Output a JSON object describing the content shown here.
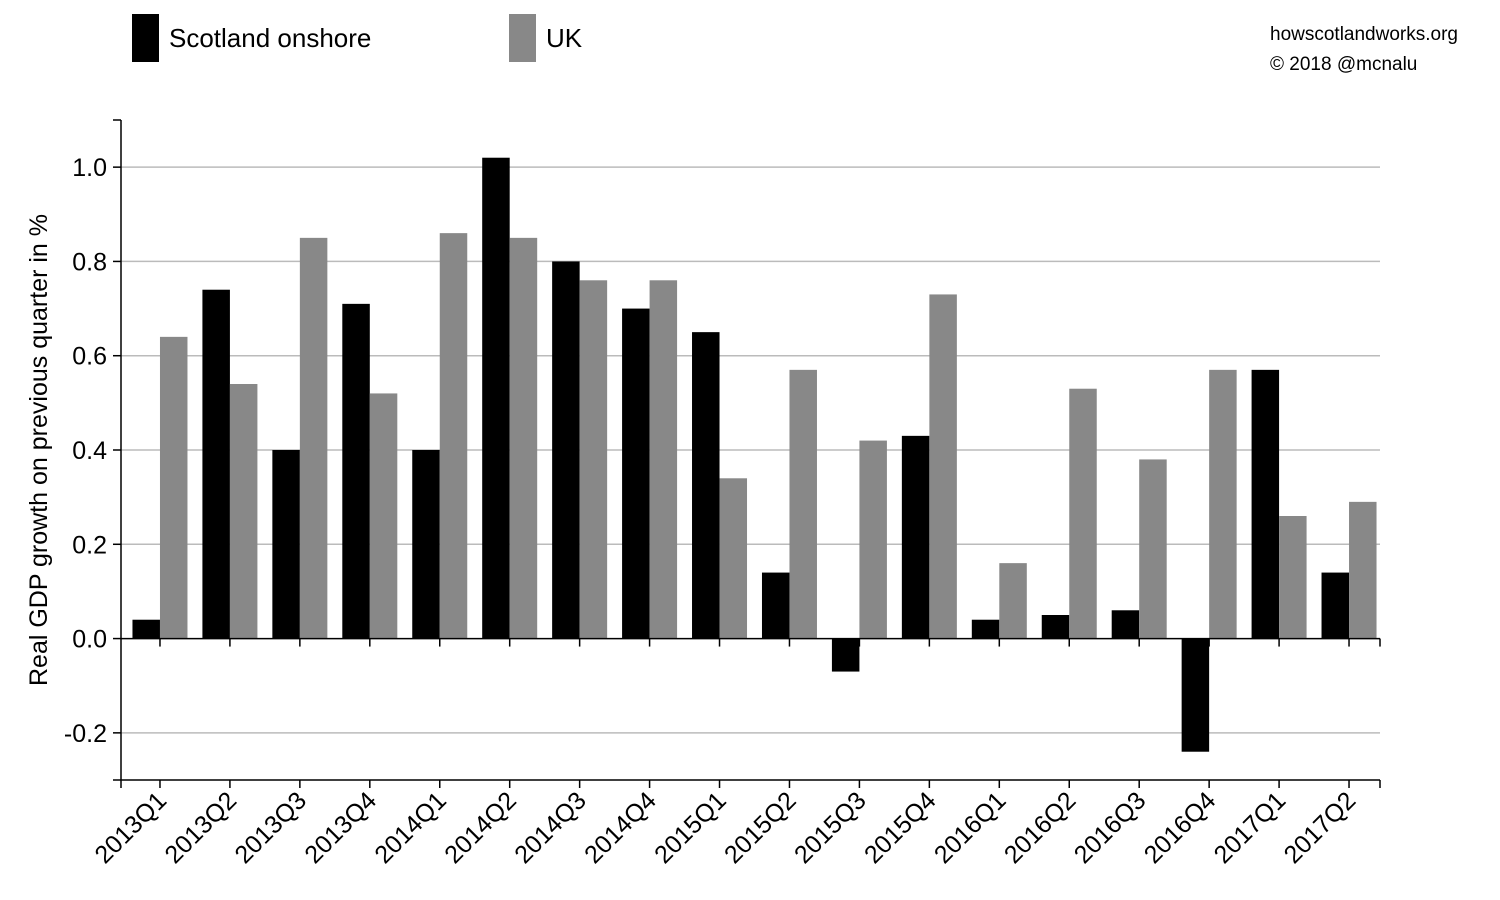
{
  "credit": {
    "site": "howscotlandworks.org",
    "copyright": "© 2018  @mcnalu"
  },
  "colors": {
    "scotland": "#000000",
    "uk": "#888888",
    "grid": "#bbbbbb",
    "axis": "#000000"
  },
  "chart_data": {
    "type": "bar",
    "title": "",
    "xlabel": "",
    "ylabel": "Real GDP growth on previous quarter in %",
    "ylim": [
      -0.3,
      1.1
    ],
    "yticks": [
      -0.2,
      0.0,
      0.2,
      0.4,
      0.6,
      0.8,
      1.0
    ],
    "ytick_labels": [
      "-0.2",
      "0.0",
      "0.2",
      "0.4",
      "0.6",
      "0.8",
      "1.0"
    ],
    "grid": true,
    "legend": "top-left",
    "categories": [
      "2013Q1",
      "2013Q2",
      "2013Q3",
      "2013Q4",
      "2014Q1",
      "2014Q2",
      "2014Q3",
      "2014Q4",
      "2015Q1",
      "2015Q2",
      "2015Q3",
      "2015Q4",
      "2016Q1",
      "2016Q2",
      "2016Q3",
      "2016Q4",
      "2017Q1",
      "2017Q2"
    ],
    "series": [
      {
        "name": "Scotland onshore",
        "color": "#000000",
        "values": [
          0.04,
          0.74,
          0.4,
          0.71,
          0.4,
          1.02,
          0.8,
          0.7,
          0.65,
          0.14,
          -0.07,
          0.43,
          0.04,
          0.05,
          0.06,
          -0.24,
          0.57,
          0.14
        ]
      },
      {
        "name": "UK",
        "color": "#888888",
        "values": [
          0.64,
          0.54,
          0.85,
          0.52,
          0.86,
          0.85,
          0.76,
          0.76,
          0.34,
          0.57,
          0.42,
          0.73,
          0.16,
          0.53,
          0.38,
          0.57,
          0.26,
          0.29
        ]
      }
    ]
  }
}
